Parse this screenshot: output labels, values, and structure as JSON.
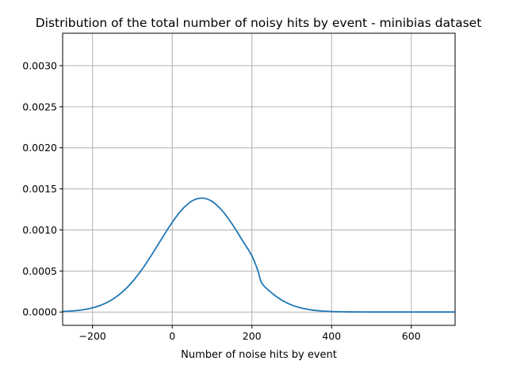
{
  "chart_data": {
    "type": "line",
    "title": "Distribution of the total number of noisy hits by event - minibias dataset",
    "xlabel": "Number of noise hits by event",
    "ylabel": "",
    "xlim": [
      -275,
      710
    ],
    "ylim": [
      -0.000162,
      0.003395
    ],
    "xticks": [
      -200,
      0,
      200,
      400,
      600
    ],
    "xtick_labels": [
      "−200",
      "0",
      "200",
      "400",
      "600"
    ],
    "yticks": [
      0.0,
      0.0005,
      0.001,
      0.0015,
      0.002,
      0.0025,
      0.003
    ],
    "ytick_labels": [
      "0.0000",
      "0.0005",
      "0.0010",
      "0.0015",
      "0.0020",
      "0.0025",
      "0.0030"
    ],
    "grid": true,
    "series": [
      {
        "color": "#1f77b4",
        "x": [
          -275,
          -250,
          -225,
          -200,
          -175,
          -150,
          -125,
          -100,
          -75,
          -50,
          -25,
          0,
          25,
          50,
          75,
          100,
          125,
          150,
          175,
          200,
          215,
          225,
          250,
          275,
          300,
          325,
          350,
          375,
          400,
          425,
          450,
          475,
          500,
          525,
          550,
          575,
          600,
          625,
          650,
          675,
          700,
          710
        ],
        "y": [
          6.5e-06,
          1.37e-05,
          2.73e-05,
          5.14e-05,
          9.13e-05,
          0.0001535,
          0.0002444,
          0.0003681,
          0.0005247,
          0.0007078,
          0.0009038,
          0.0010923,
          0.0012498,
          0.0013536,
          0.0013878,
          0.0013473,
          0.0012366,
          0.0010744,
          0.0008812,
          0.0006843,
          0.0005035,
          0.0003507,
          0.0002315,
          0.0001446,
          8.55e-05,
          4.79e-05,
          2.54e-05,
          1.27e-05,
          6e-06,
          2.7e-06,
          1.2e-06,
          5e-07,
          2e-07,
          1e-07,
          3e-08,
          1e-08,
          4e-09,
          1e-09,
          4e-10,
          1e-10,
          3e-11,
          2e-11
        ]
      }
    ]
  }
}
